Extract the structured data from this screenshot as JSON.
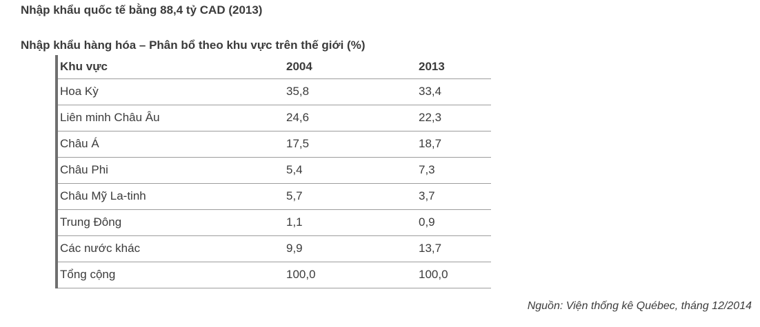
{
  "page": {
    "title": "Nhập khẩu quốc tế bằng 88,4 tỷ CAD (2013)",
    "caption": "Nhập khẩu hàng hóa – Phân bổ theo khu vực trên thế giới (%)",
    "source": "Nguồn: Viện thống kê Québec, tháng 12/2014"
  },
  "chart_data": {
    "type": "table",
    "title": "Nhập khẩu hàng hóa – Phân bổ theo khu vực trên thế giới (%)",
    "columns": [
      "Khu vực",
      "2004",
      "2013"
    ],
    "rows": [
      [
        "Hoa Kỳ",
        "35,8",
        "33,4"
      ],
      [
        "Liên minh Châu Âu",
        "24,6",
        "22,3"
      ],
      [
        "Châu Á",
        "17,5",
        "18,7"
      ],
      [
        "Châu Phi",
        "5,4",
        "7,3"
      ],
      [
        "Châu Mỹ La-tinh",
        "5,7",
        "3,7"
      ],
      [
        "Trung Đông",
        "1,1",
        "0,9"
      ],
      [
        "Các nước khác",
        "9,9",
        "13,7"
      ],
      [
        "Tổng cộng",
        "100,0",
        "100,0"
      ]
    ]
  },
  "colors": {
    "text": "#3b3b3b",
    "row_border": "#9c9c9c",
    "table_left_bar": "#6f6f6f",
    "background": "#ffffff"
  }
}
